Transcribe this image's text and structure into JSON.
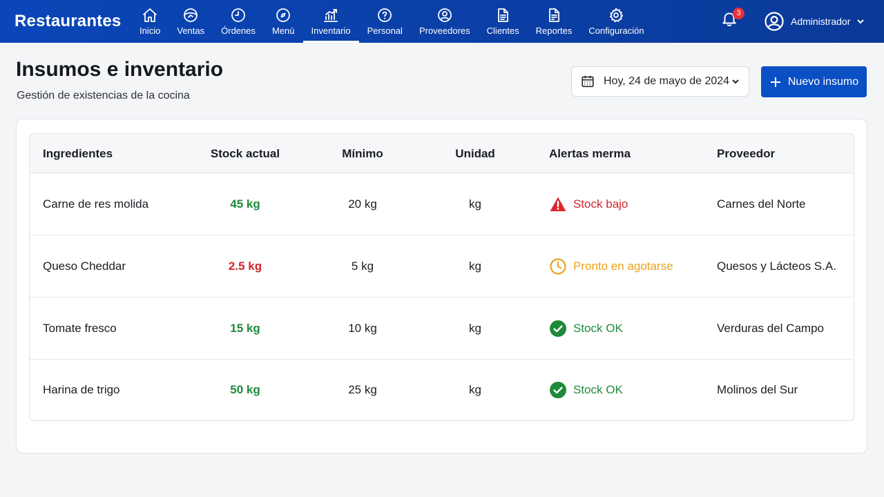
{
  "app": {
    "brand": "Restaurantes"
  },
  "nav": [
    {
      "label": "Inicio",
      "icon": "home-icon"
    },
    {
      "label": "Ventas",
      "icon": "sales-icon"
    },
    {
      "label": "Órdenes",
      "icon": "clock-icon"
    },
    {
      "label": "Menú",
      "icon": "menu-compass-icon"
    },
    {
      "label": "Inventario",
      "icon": "chart-icon",
      "active": true
    },
    {
      "label": "Personal",
      "icon": "help-circle-icon"
    },
    {
      "label": "Proveedores",
      "icon": "user-circle-icon"
    },
    {
      "label": "Clientes",
      "icon": "document-icon"
    },
    {
      "label": "Reportes",
      "icon": "report-icon"
    },
    {
      "label": "Configuración",
      "icon": "gear-icon"
    }
  ],
  "notifications": {
    "count": "3"
  },
  "user": {
    "name": "Administrador"
  },
  "page": {
    "title": "Insumos e inventario",
    "subtitle": "Gestión de existencias de la cocina"
  },
  "date_picker": {
    "label": "Hoy, 24 de mayo de 2024"
  },
  "new_button": {
    "label": "Nuevo insumo"
  },
  "table": {
    "headers": [
      "Ingredientes",
      "Stock actual",
      "Mínimo",
      "Unidad",
      "Alertas merma",
      "Proveedor"
    ],
    "rows": [
      {
        "ingredient": "Carne de res molida",
        "stock": "45 kg",
        "stock_status": "ok",
        "minimum": "20 kg",
        "unit": "kg",
        "alert": "Stock bajo",
        "alert_type": "danger",
        "supplier": "Carnes del Norte"
      },
      {
        "ingredient": "Queso Cheddar",
        "stock": "2.5 kg",
        "stock_status": "low",
        "minimum": "5 kg",
        "unit": "kg",
        "alert": "Pronto en agotarse",
        "alert_type": "warning",
        "supplier": "Quesos y Lácteos S.A."
      },
      {
        "ingredient": "Tomate fresco",
        "stock": "15 kg",
        "stock_status": "ok",
        "minimum": "10 kg",
        "unit": "kg",
        "alert": "Stock OK",
        "alert_type": "ok",
        "supplier": "Verduras del Campo"
      },
      {
        "ingredient": "Harina de trigo",
        "stock": "50 kg",
        "stock_status": "ok",
        "minimum": "25 kg",
        "unit": "kg",
        "alert": "Stock OK",
        "alert_type": "ok",
        "supplier": "Molinos del Sur"
      }
    ]
  },
  "colors": {
    "header_bg": "#0a46b8",
    "primary_button": "#0b4fc4",
    "ok": "#1e8a3a",
    "danger": "#d3242c",
    "warning": "#e9a21a"
  }
}
